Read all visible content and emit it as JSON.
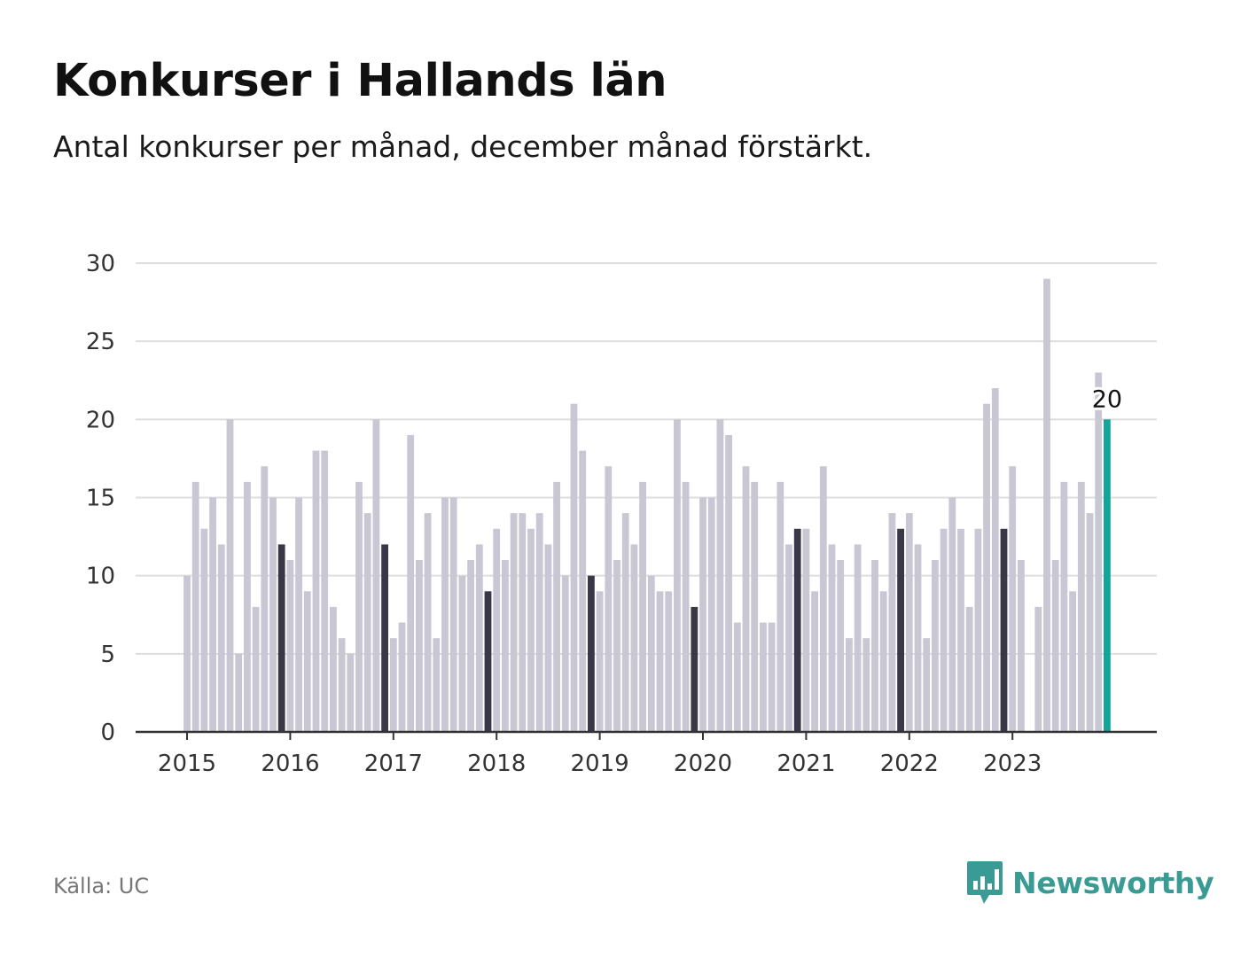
{
  "title": "Konkurser i Hallands län",
  "subtitle": "Antal konkurser per månad, december månad förstärkt.",
  "source": "Källa: UC",
  "brand": {
    "name": "Newsworthy",
    "icon": "bar-chart-speech-bubble-icon"
  },
  "colors": {
    "bar": "#c8c7d3",
    "december": "#3a3846",
    "latest": "#13a59b",
    "grid": "#dddddd",
    "axis": "#333333",
    "brand": "#3a9b94"
  },
  "chart_data": {
    "type": "bar",
    "start": "2015-01",
    "end": "2023-12",
    "years": [
      "2015",
      "2016",
      "2017",
      "2018",
      "2019",
      "2020",
      "2021",
      "2022",
      "2023"
    ],
    "values": [
      10,
      16,
      13,
      15,
      12,
      20,
      5,
      16,
      8,
      17,
      15,
      12,
      11,
      15,
      9,
      18,
      18,
      8,
      6,
      5,
      16,
      14,
      20,
      12,
      6,
      7,
      19,
      11,
      14,
      6,
      15,
      15,
      10,
      11,
      12,
      9,
      13,
      11,
      14,
      14,
      13,
      14,
      12,
      16,
      10,
      21,
      18,
      10,
      9,
      17,
      11,
      14,
      12,
      16,
      10,
      9,
      9,
      20,
      16,
      8,
      15,
      15,
      20,
      19,
      7,
      17,
      16,
      7,
      7,
      16,
      12,
      13,
      13,
      9,
      17,
      12,
      11,
      6,
      12,
      6,
      11,
      9,
      14,
      13,
      14,
      12,
      6,
      11,
      13,
      15,
      13,
      8,
      13,
      21,
      22,
      13,
      17,
      11,
      0,
      8,
      29,
      11,
      16,
      9,
      16,
      14,
      23,
      20
    ],
    "highlight": "december",
    "latest_label": "20",
    "xlabel": "",
    "ylabel": "",
    "yticks": [
      0,
      5,
      10,
      15,
      20,
      25,
      30
    ],
    "ylim": [
      0,
      30
    ],
    "grid": true,
    "legend": "none"
  }
}
